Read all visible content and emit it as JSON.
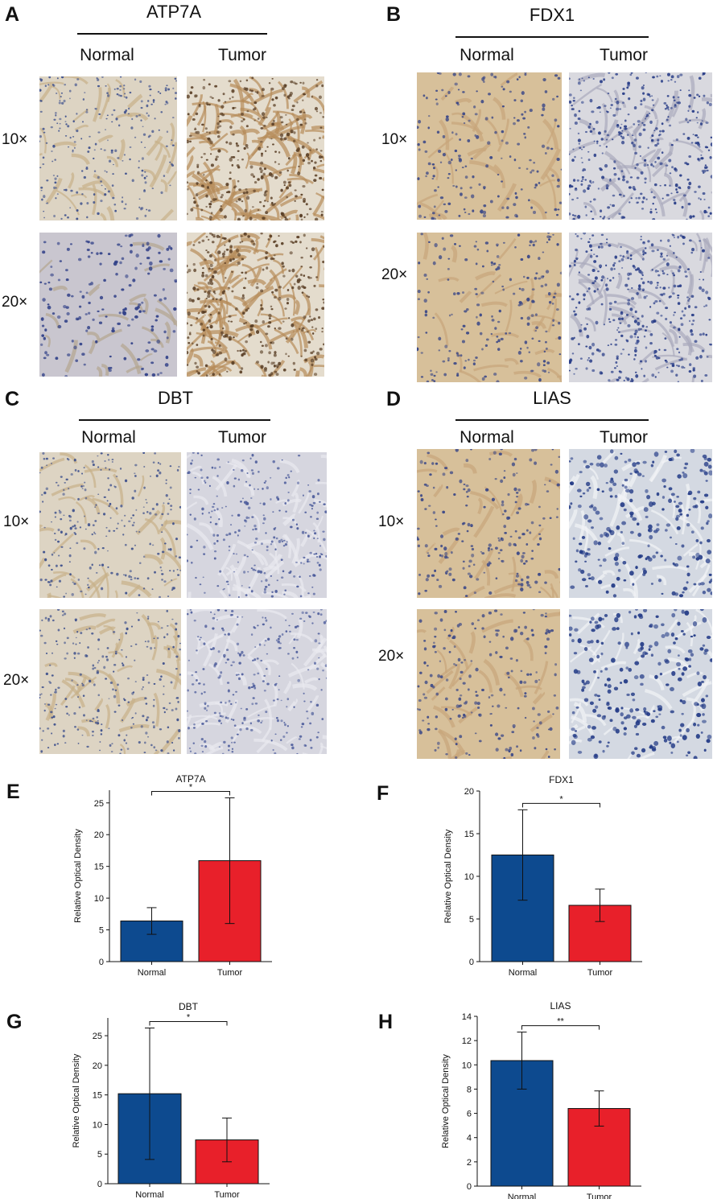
{
  "ihc_panels": [
    {
      "letter": "A",
      "title": "ATP7A",
      "columns": [
        "Normal",
        "Tumor"
      ],
      "rows": [
        "10×",
        "20×"
      ]
    },
    {
      "letter": "B",
      "title": "FDX1",
      "columns": [
        "Normal",
        "Tumor"
      ],
      "rows": [
        "10×",
        "20×"
      ]
    },
    {
      "letter": "C",
      "title": "DBT",
      "columns": [
        "Normal",
        "Tumor"
      ],
      "rows": [
        "10×",
        "20×"
      ]
    },
    {
      "letter": "D",
      "title": "LIAS",
      "columns": [
        "Normal",
        "Tumor"
      ],
      "rows": [
        "10×",
        "20×"
      ]
    }
  ],
  "colors": {
    "normal_bar": "#0d4a8f",
    "tumor_bar": "#e8202a",
    "stain_brown": "#c9a27a",
    "stain_blue": "#2f3f8f",
    "background_tissue": "#e9e2d6"
  },
  "chart_data": [
    {
      "letter": "E",
      "type": "bar",
      "title": "ATP7A",
      "categories": [
        "Normal",
        "Tumor"
      ],
      "values": [
        6.4,
        15.9
      ],
      "errors": [
        2.1,
        9.9
      ],
      "ylabel": "Relative Optical  Density",
      "ylim": [
        0,
        27
      ],
      "yticks": [
        0,
        5,
        10,
        15,
        20,
        25
      ],
      "significance": "*",
      "grid": false
    },
    {
      "letter": "F",
      "type": "bar",
      "title": "FDX1",
      "categories": [
        "Normal",
        "Tumor"
      ],
      "values": [
        12.5,
        6.6
      ],
      "errors": [
        5.3,
        1.9
      ],
      "ylabel": "Relative Optical  Density",
      "ylim": [
        0,
        20
      ],
      "yticks": [
        0,
        5,
        10,
        15,
        20
      ],
      "significance": "*",
      "grid": false
    },
    {
      "letter": "G",
      "type": "bar",
      "title": "DBT",
      "categories": [
        "Normal",
        "Tumor"
      ],
      "values": [
        15.2,
        7.4
      ],
      "errors": [
        11.1,
        3.7
      ],
      "ylabel": "Relative Optical  Density",
      "ylim": [
        0,
        28
      ],
      "yticks": [
        0,
        5,
        10,
        15,
        20,
        25
      ],
      "significance": "*",
      "grid": false
    },
    {
      "letter": "H",
      "type": "bar",
      "title": "LIAS",
      "categories": [
        "Normal",
        "Tumor"
      ],
      "values": [
        10.35,
        6.4
      ],
      "errors": [
        2.35,
        1.45
      ],
      "ylabel": "Relative Optical  Density",
      "ylim": [
        0,
        14
      ],
      "yticks": [
        0,
        2,
        4,
        6,
        8,
        10,
        12,
        14
      ],
      "significance": "**",
      "grid": false
    }
  ]
}
